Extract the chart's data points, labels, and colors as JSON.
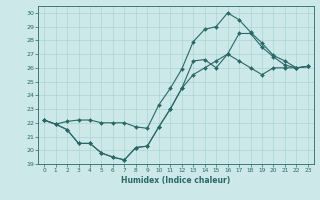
{
  "title": "",
  "xlabel": "Humidex (Indice chaleur)",
  "xlim": [
    -0.5,
    23.5
  ],
  "ylim": [
    19,
    30.5
  ],
  "yticks": [
    19,
    20,
    21,
    22,
    23,
    24,
    25,
    26,
    27,
    28,
    29,
    30
  ],
  "xticks": [
    0,
    1,
    2,
    3,
    4,
    5,
    6,
    7,
    8,
    9,
    10,
    11,
    12,
    13,
    14,
    15,
    16,
    17,
    18,
    19,
    20,
    21,
    22,
    23
  ],
  "background_color": "#cce8e8",
  "grid_color": "#aad4d4",
  "line_color": "#2a6868",
  "line1_x": [
    0,
    1,
    2,
    3,
    4,
    5,
    6,
    7,
    8,
    9,
    10,
    11,
    12,
    13,
    14,
    15,
    16,
    17,
    18,
    19,
    20,
    21,
    22,
    23
  ],
  "line1_y": [
    22.2,
    21.9,
    21.5,
    20.5,
    20.5,
    19.8,
    19.5,
    19.3,
    20.2,
    20.3,
    21.7,
    23.0,
    24.5,
    25.5,
    26.0,
    26.5,
    27.0,
    28.5,
    28.5,
    27.5,
    26.8,
    26.2,
    26.0,
    26.1
  ],
  "line2_x": [
    0,
    1,
    2,
    3,
    4,
    5,
    6,
    7,
    8,
    9,
    10,
    11,
    12,
    13,
    14,
    15,
    16,
    17,
    18,
    19,
    20,
    21,
    22,
    23
  ],
  "line2_y": [
    22.2,
    21.9,
    22.1,
    22.2,
    22.2,
    22.0,
    22.0,
    22.0,
    21.7,
    21.6,
    23.3,
    24.5,
    25.9,
    27.9,
    28.8,
    29.0,
    30.0,
    29.5,
    28.6,
    27.8,
    26.9,
    26.5,
    26.0,
    26.1
  ],
  "line3_x": [
    0,
    1,
    2,
    3,
    4,
    5,
    6,
    7,
    8,
    9,
    10,
    11,
    12,
    13,
    14,
    15,
    16,
    17,
    18,
    19,
    20,
    21,
    22,
    23
  ],
  "line3_y": [
    22.2,
    21.9,
    21.5,
    20.5,
    20.5,
    19.8,
    19.5,
    19.3,
    20.2,
    20.3,
    21.7,
    23.0,
    24.5,
    26.5,
    26.6,
    26.0,
    27.0,
    26.5,
    26.0,
    25.5,
    26.0,
    26.0,
    26.0,
    26.1
  ]
}
